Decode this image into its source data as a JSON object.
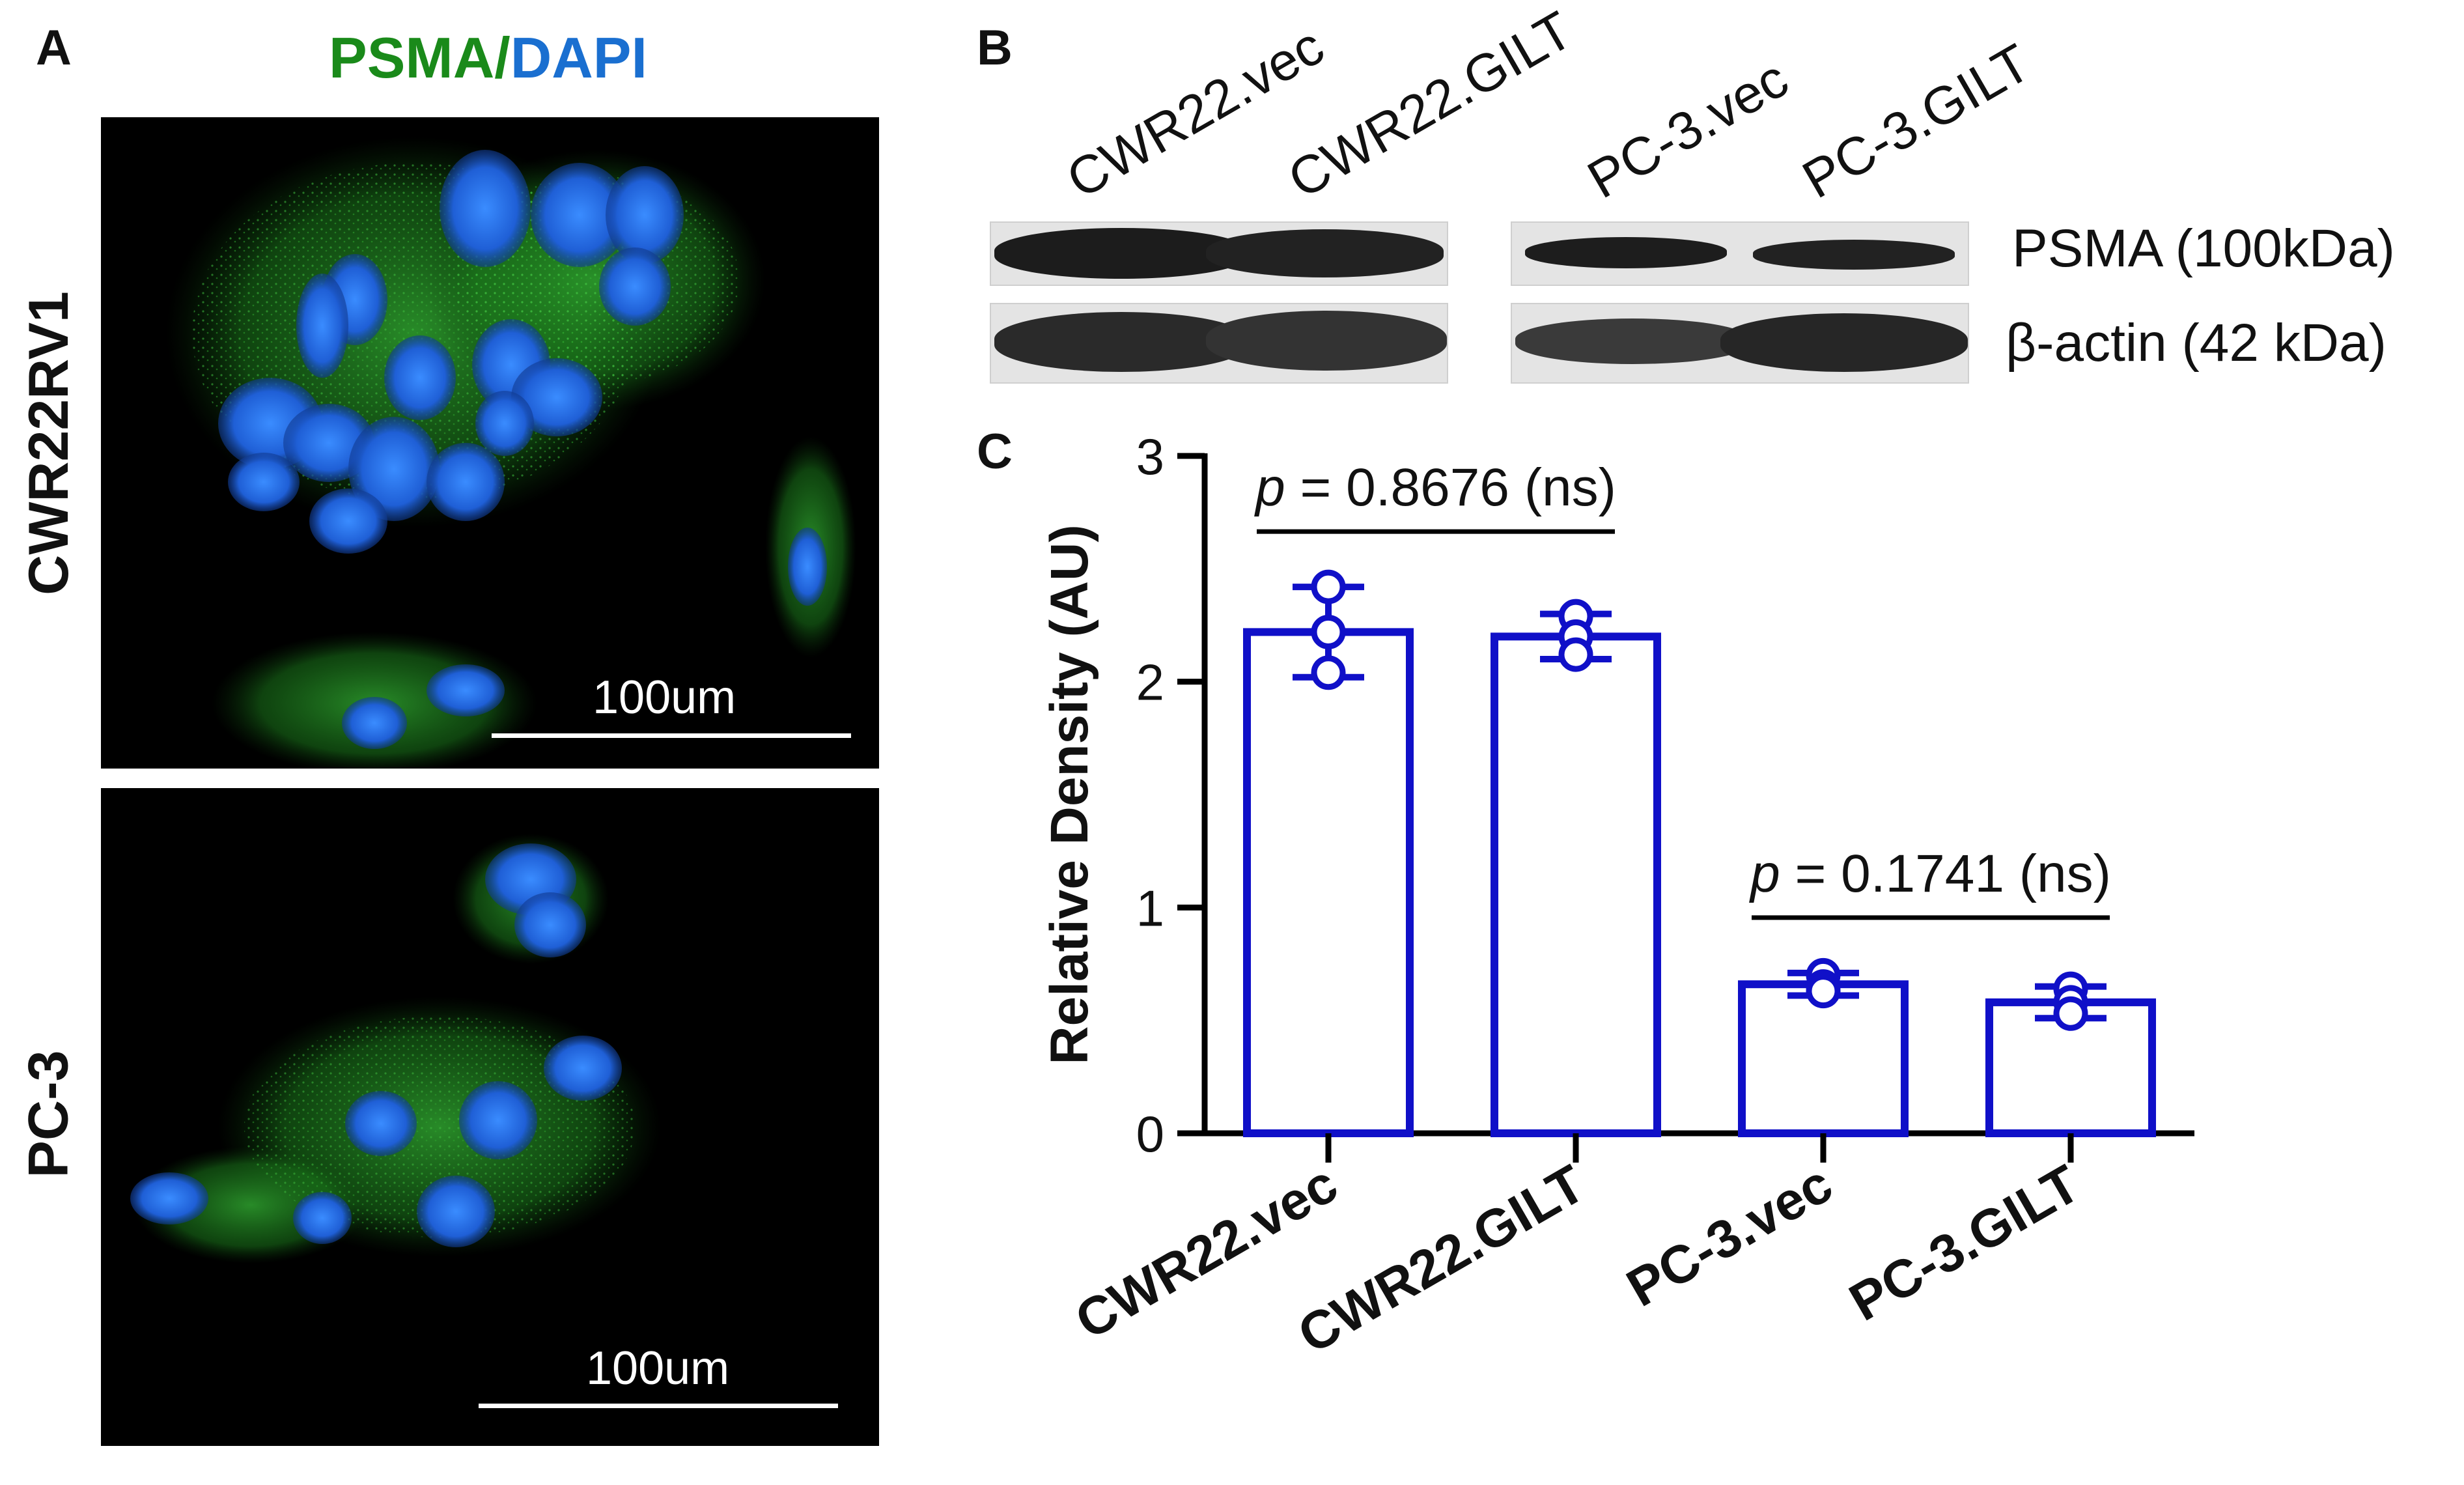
{
  "panel_a": {
    "letter": "A",
    "title_psma": "PSMA",
    "title_sep": "/",
    "title_dapi": "DAPI",
    "rows": [
      {
        "label": "CWR22RV1",
        "scalebar": "100um"
      },
      {
        "label": "PC-3",
        "scalebar": "100um"
      }
    ],
    "colors": {
      "psma": "#1a8a1a",
      "dapi": "#1a6fd0"
    }
  },
  "panel_b": {
    "letter": "B",
    "lanes": [
      "CWR22.vec",
      "CWR22.GILT",
      "PC-3.vec",
      "PC-3.GILT"
    ],
    "bands": [
      "PSMA (100kDa)",
      "β-actin (42 kDa)"
    ]
  },
  "panel_c": {
    "letter": "C",
    "chart_data": {
      "type": "bar",
      "categories": [
        "CWR22.vec",
        "CWR22.GILT",
        "PC-3.vec",
        "PC-3.GILT"
      ],
      "values": [
        2.22,
        2.2,
        0.66,
        0.58
      ],
      "errors": [
        0.2,
        0.1,
        0.05,
        0.07
      ],
      "points": [
        [
          2.42,
          2.22,
          2.04
        ],
        [
          2.29,
          2.2,
          2.12
        ],
        [
          0.7,
          0.65,
          0.63
        ],
        [
          0.64,
          0.58,
          0.53
        ]
      ],
      "ylabel": "Relative Density (AU)",
      "ylim": [
        0,
        3
      ],
      "yticks": [
        0,
        1,
        2,
        3
      ],
      "annotations": [
        {
          "p": "p",
          "text": " = 0.8676 (ns)",
          "from": 0,
          "to": 1
        },
        {
          "p": "p",
          "text": " = 0.1741 (ns)",
          "from": 2,
          "to": 3
        }
      ],
      "color": "#1010c8",
      "grid": false
    }
  }
}
